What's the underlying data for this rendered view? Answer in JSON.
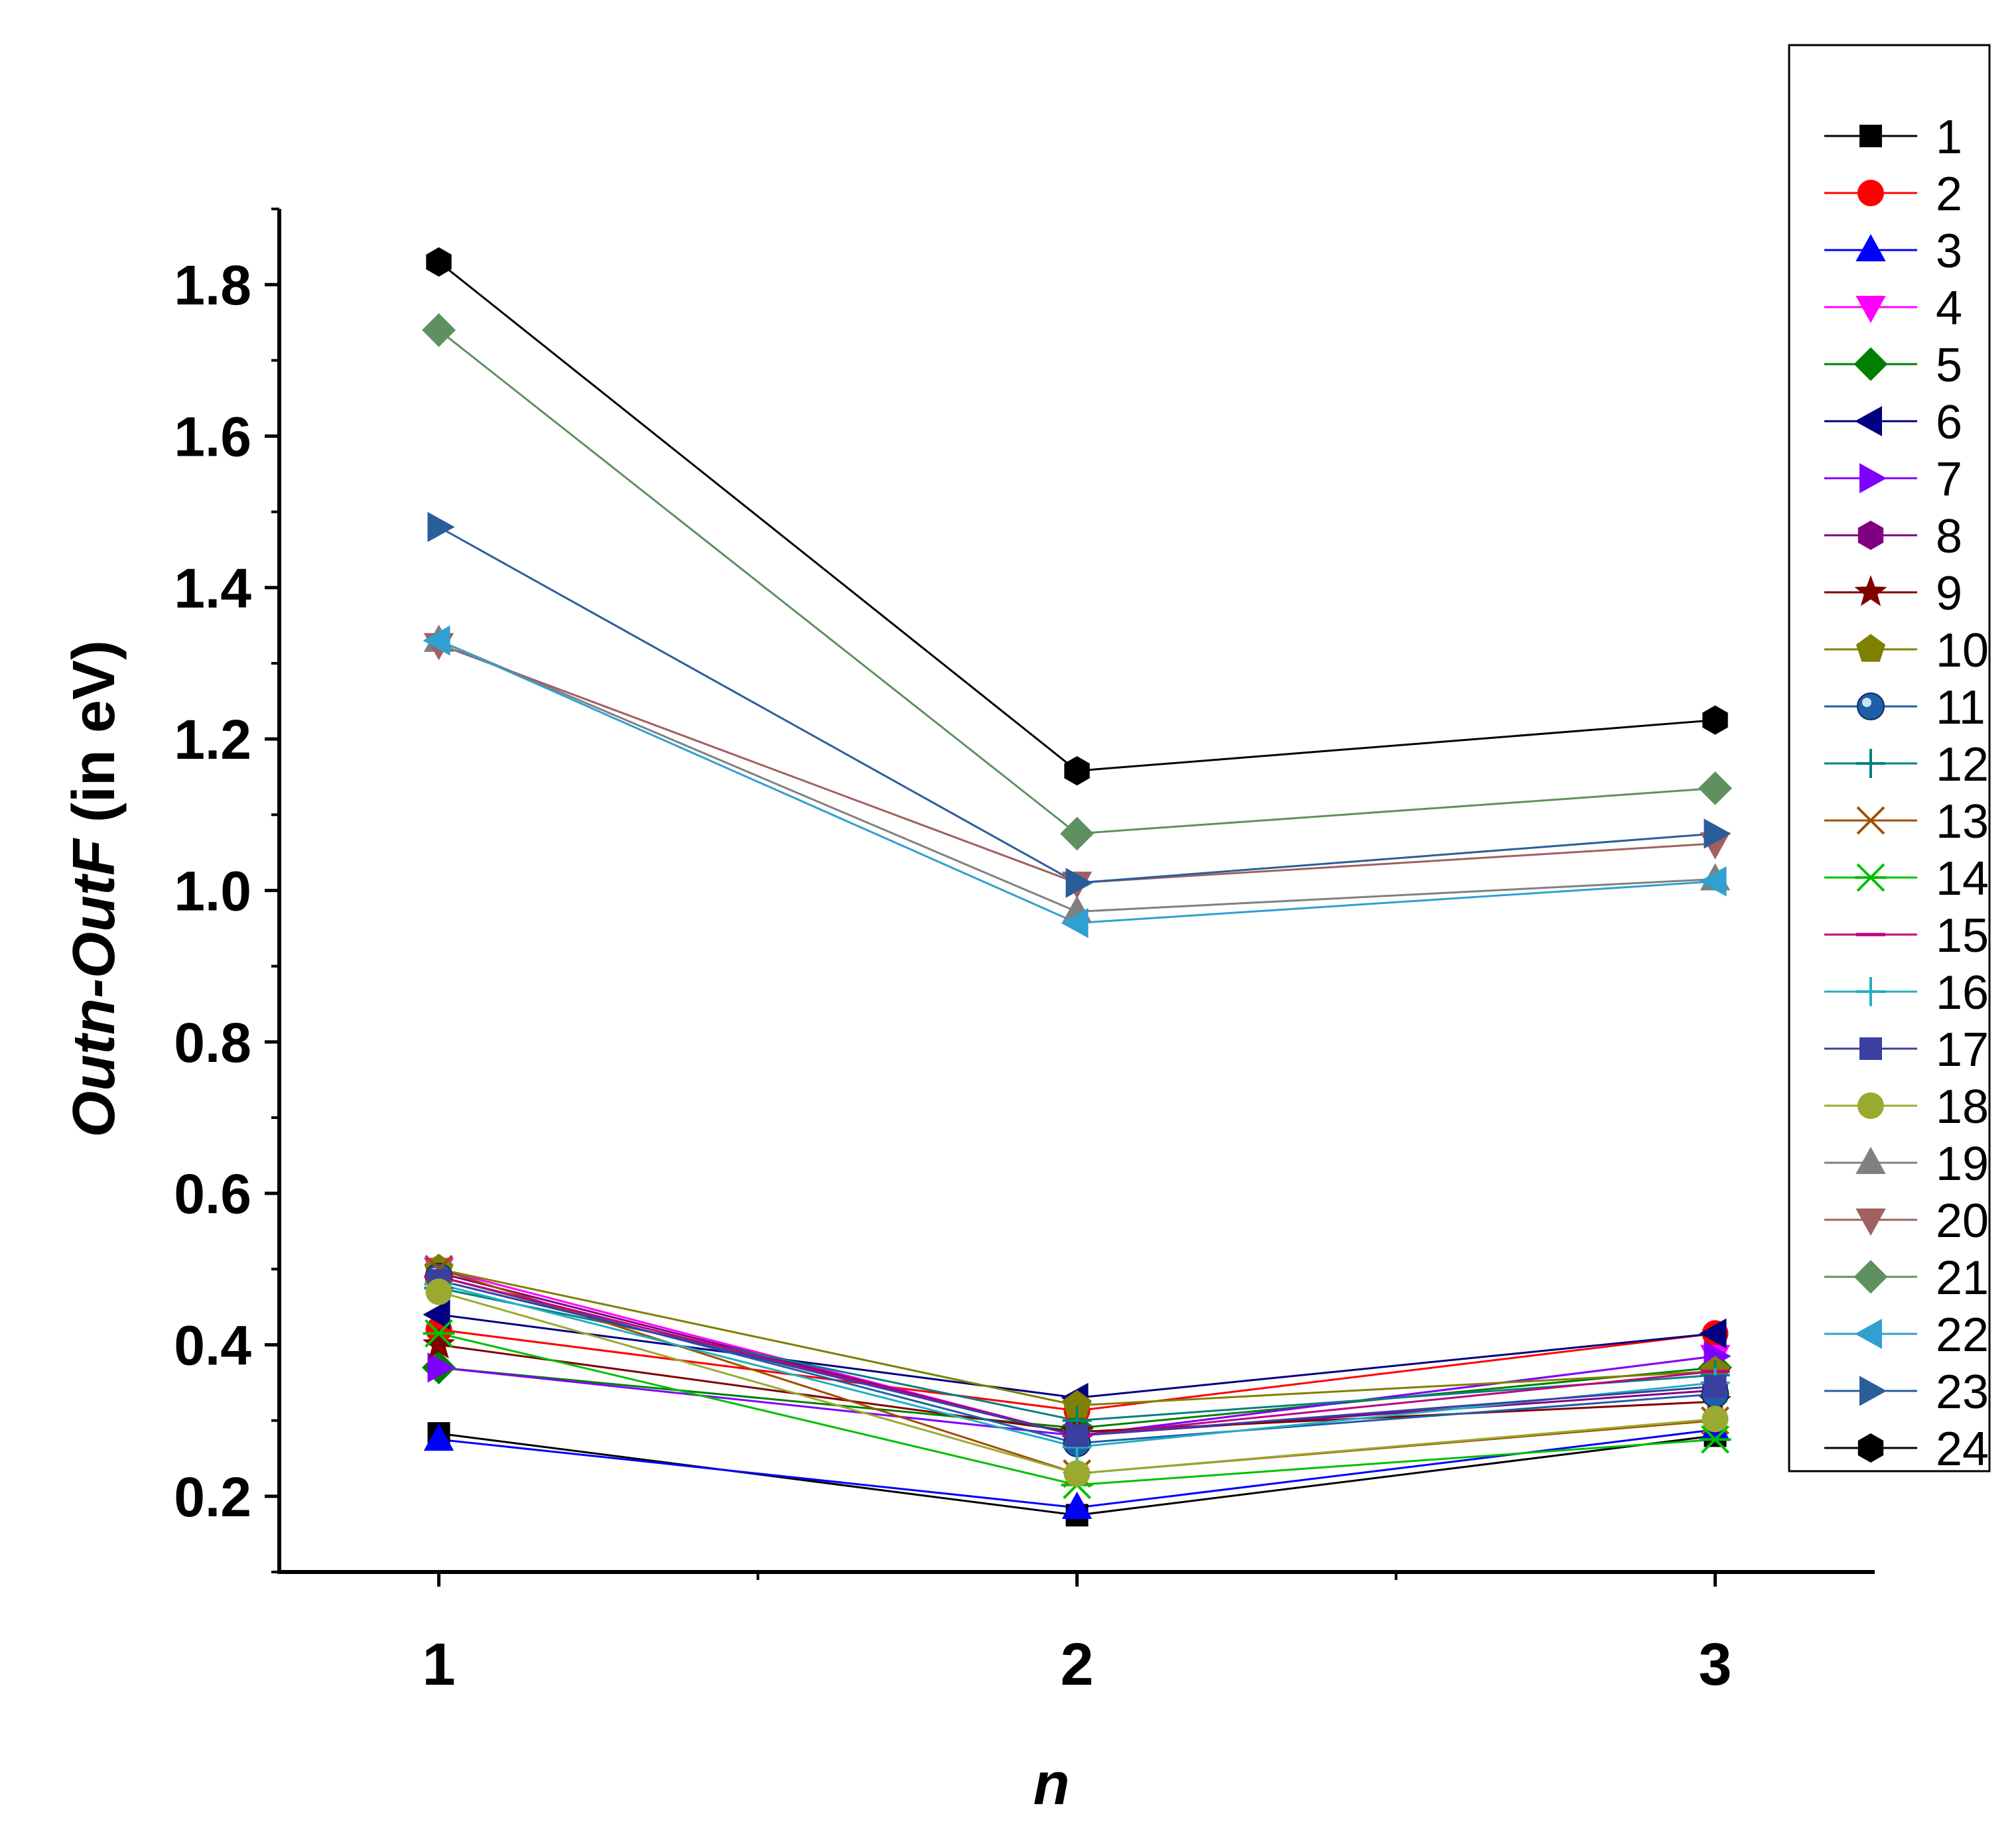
{
  "chart_data": {
    "type": "line",
    "title": "",
    "xlabel": "n",
    "ylabel_italic": "Outn-OutF",
    "ylabel_rest": " (in eV)",
    "x": [
      1,
      2,
      3
    ],
    "xlim": [
      0.75,
      3.25
    ],
    "ylim": [
      0.1,
      1.9
    ],
    "xticks": [
      1,
      2,
      3
    ],
    "xtick_labels": [
      "1",
      "2",
      "3"
    ],
    "yticks": [
      0.2,
      0.4,
      0.6,
      0.8,
      1.0,
      1.2,
      1.4,
      1.6,
      1.8
    ],
    "ytick_labels": [
      "0.2",
      "0.4",
      "0.6",
      "0.8",
      "1.0",
      "1.2",
      "1.4",
      "1.6",
      "1.8"
    ],
    "grid": false,
    "legend_position": "right",
    "series": [
      {
        "name": "1",
        "values": [
          0.283,
          0.175,
          0.28
        ],
        "color": "#000000",
        "marker": "square"
      },
      {
        "name": "2",
        "values": [
          0.42,
          0.313,
          0.415
        ],
        "color": "#FF0000",
        "marker": "circle"
      },
      {
        "name": "3",
        "values": [
          0.275,
          0.185,
          0.288
        ],
        "color": "#0000FF",
        "marker": "triangle-up"
      },
      {
        "name": "4",
        "values": [
          0.5,
          0.28,
          0.385
        ],
        "color": "#FF00FF",
        "marker": "triangle-down"
      },
      {
        "name": "5",
        "values": [
          0.37,
          0.29,
          0.37
        ],
        "color": "#008000",
        "marker": "diamond"
      },
      {
        "name": "6",
        "values": [
          0.44,
          0.33,
          0.415
        ],
        "color": "#000080",
        "marker": "triangle-left"
      },
      {
        "name": "7",
        "values": [
          0.37,
          0.28,
          0.385
        ],
        "color": "#8000FF",
        "marker": "triangle-right"
      },
      {
        "name": "8",
        "values": [
          0.495,
          0.28,
          0.34
        ],
        "color": "#800080",
        "marker": "hexagon"
      },
      {
        "name": "9",
        "values": [
          0.4,
          0.285,
          0.325
        ],
        "color": "#800000",
        "marker": "star"
      },
      {
        "name": "10",
        "values": [
          0.5,
          0.32,
          0.365
        ],
        "color": "#808000",
        "marker": "pentagon"
      },
      {
        "name": "11",
        "values": [
          0.49,
          0.27,
          0.335
        ],
        "color": "#1F5FA8",
        "marker": "sphere"
      },
      {
        "name": "12",
        "values": [
          0.475,
          0.3,
          0.36
        ],
        "color": "#008080",
        "marker": "plus"
      },
      {
        "name": "13",
        "values": [
          0.5,
          0.23,
          0.3
        ],
        "color": "#A05000",
        "marker": "cross"
      },
      {
        "name": "14",
        "values": [
          0.415,
          0.215,
          0.275
        ],
        "color": "#00C000",
        "marker": "asterisk"
      },
      {
        "name": "15",
        "values": [
          0.49,
          0.28,
          0.365
        ],
        "color": "#C00080",
        "marker": "dash"
      },
      {
        "name": "16",
        "values": [
          0.48,
          0.265,
          0.35
        ],
        "color": "#20B0C0",
        "marker": "plus"
      },
      {
        "name": "17",
        "values": [
          0.485,
          0.28,
          0.345
        ],
        "color": "#3A3FA0",
        "marker": "square"
      },
      {
        "name": "18",
        "values": [
          0.47,
          0.23,
          0.302
        ],
        "color": "#9AAA30",
        "marker": "circle"
      },
      {
        "name": "19",
        "values": [
          1.33,
          0.972,
          1.015
        ],
        "color": "#808080",
        "marker": "triangle-up"
      },
      {
        "name": "20",
        "values": [
          1.325,
          1.01,
          1.062
        ],
        "color": "#A06060",
        "marker": "triangle-down"
      },
      {
        "name": "21",
        "values": [
          1.74,
          1.075,
          1.135
        ],
        "color": "#5F9060",
        "marker": "diamond"
      },
      {
        "name": "22",
        "values": [
          1.33,
          0.957,
          1.012
        ],
        "color": "#30A0D0",
        "marker": "triangle-left"
      },
      {
        "name": "23",
        "values": [
          1.48,
          1.01,
          1.075
        ],
        "color": "#2A5E9A",
        "marker": "triangle-right"
      },
      {
        "name": "24",
        "values": [
          1.83,
          1.158,
          1.225
        ],
        "color": "#000000",
        "marker": "hexagon"
      }
    ]
  }
}
